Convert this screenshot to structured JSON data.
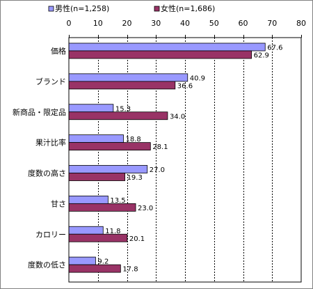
{
  "chart_data": {
    "type": "bar",
    "orientation": "horizontal",
    "categories": [
      "価格",
      "ブランド",
      "新商品・限定品",
      "果汁比率",
      "度数の高さ",
      "甘さ",
      "カロリー",
      "度数の低さ"
    ],
    "series": [
      {
        "name": "男性(n=1,258)",
        "values": [
          67.6,
          40.9,
          15.3,
          18.8,
          27.0,
          13.5,
          11.8,
          9.2
        ],
        "color": "#9999ff"
      },
      {
        "name": "女性(n=1,686)",
        "values": [
          62.9,
          36.6,
          34.0,
          28.1,
          19.3,
          23.0,
          20.1,
          17.8
        ],
        "color": "#993366"
      }
    ],
    "xlim": [
      0,
      80
    ],
    "xticks": [
      "0",
      "10",
      "20",
      "30",
      "40",
      "50",
      "60",
      "70",
      "80"
    ],
    "grid": true,
    "legend_position": "top-left"
  }
}
